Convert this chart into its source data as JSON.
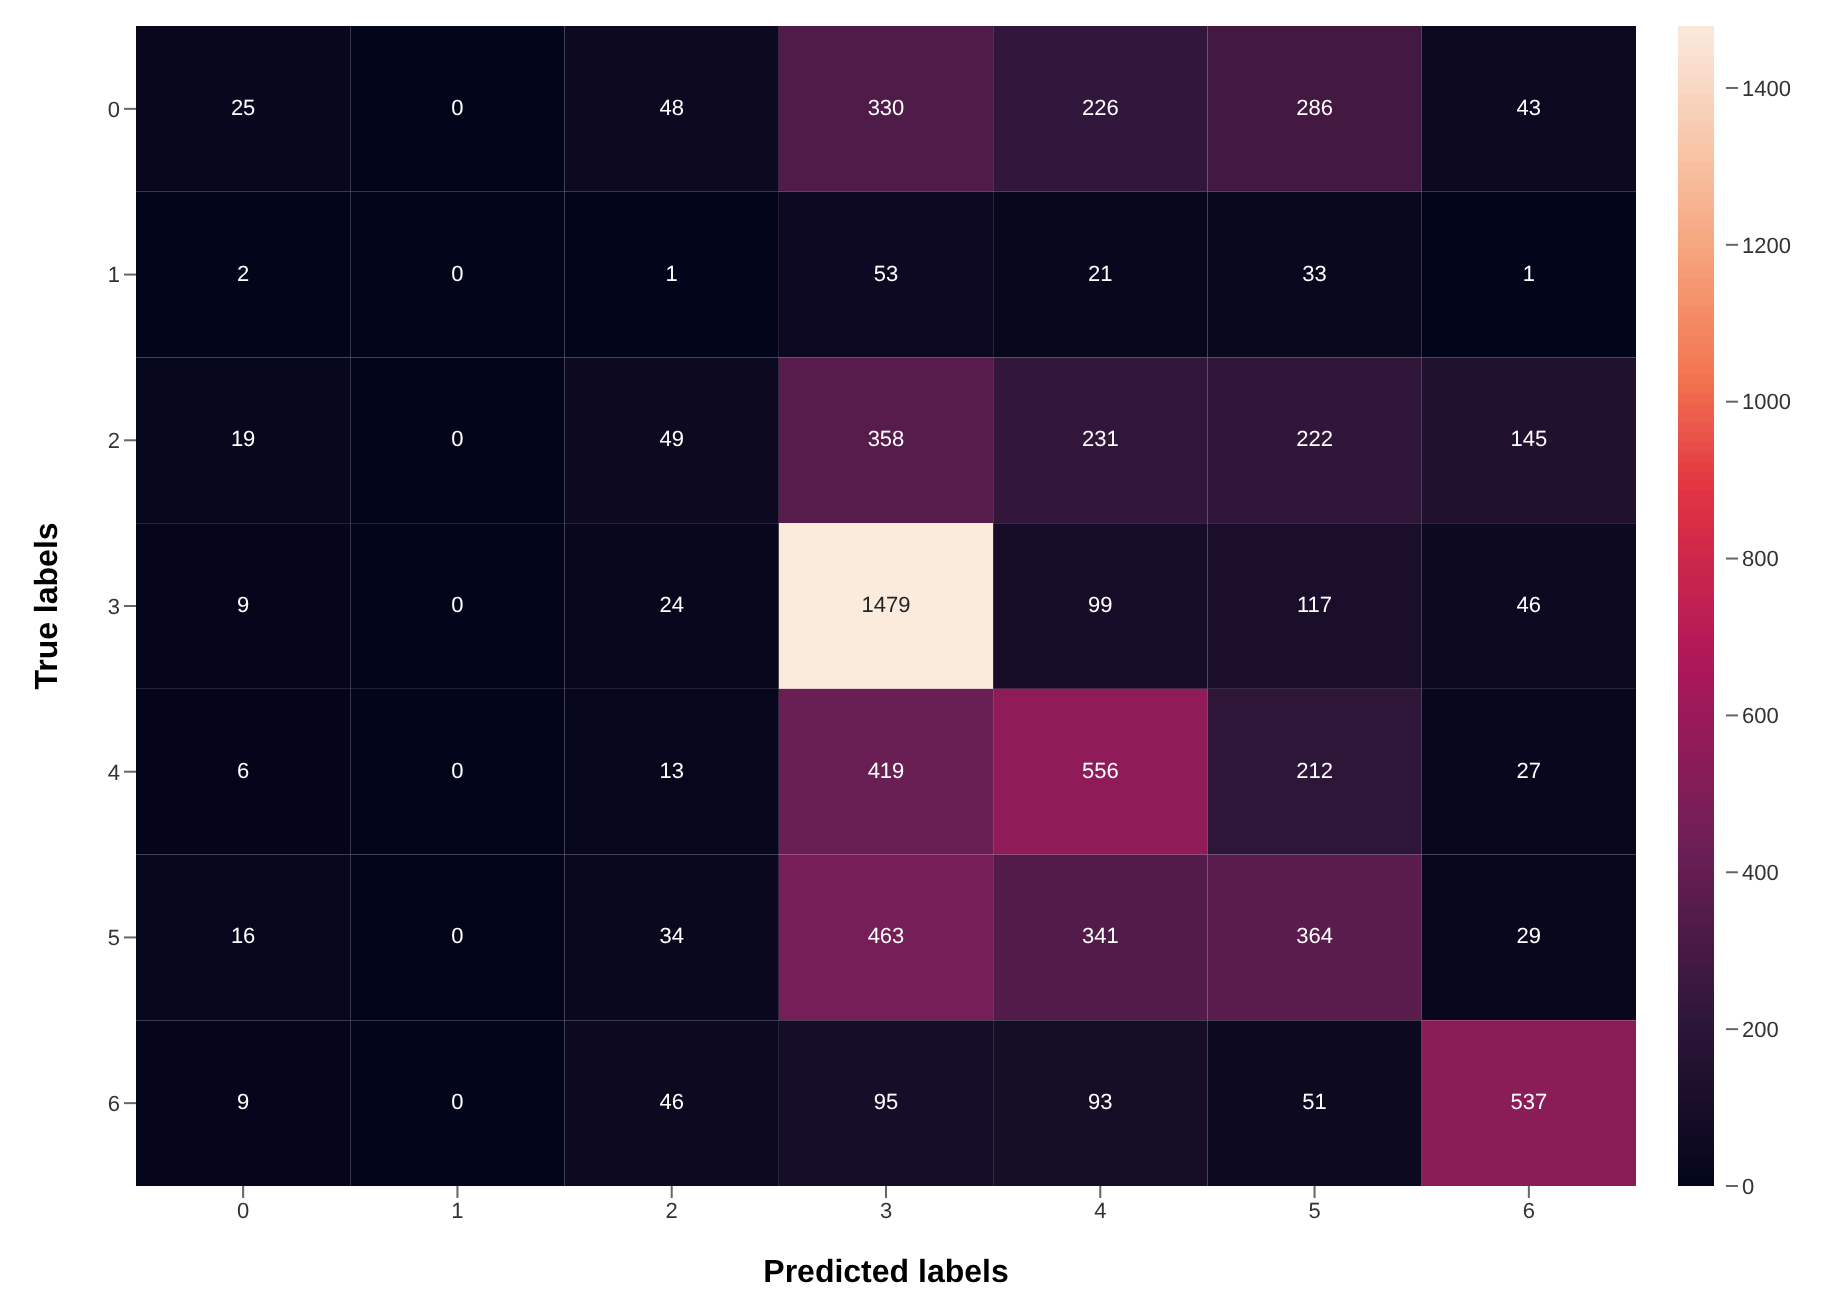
{
  "chart_data": {
    "type": "heatmap",
    "xlabel": "Predicted labels",
    "ylabel": "True labels",
    "categories": [
      "0",
      "1",
      "2",
      "3",
      "4",
      "5",
      "6"
    ],
    "y_categories": [
      "0",
      "1",
      "2",
      "3",
      "4",
      "5",
      "6"
    ],
    "cells": [
      [
        25,
        0,
        48,
        330,
        226,
        286,
        43
      ],
      [
        2,
        0,
        1,
        53,
        21,
        33,
        1
      ],
      [
        19,
        0,
        49,
        358,
        231,
        222,
        145
      ],
      [
        9,
        0,
        24,
        1479,
        99,
        117,
        46
      ],
      [
        6,
        0,
        13,
        419,
        556,
        212,
        27
      ],
      [
        16,
        0,
        34,
        463,
        341,
        364,
        29
      ],
      [
        9,
        0,
        46,
        95,
        93,
        51,
        537
      ]
    ],
    "clim": [
      0,
      1479
    ],
    "cticks": [
      0,
      200,
      400,
      600,
      800,
      1000,
      1200,
      1400
    ],
    "data_labels": true
  }
}
